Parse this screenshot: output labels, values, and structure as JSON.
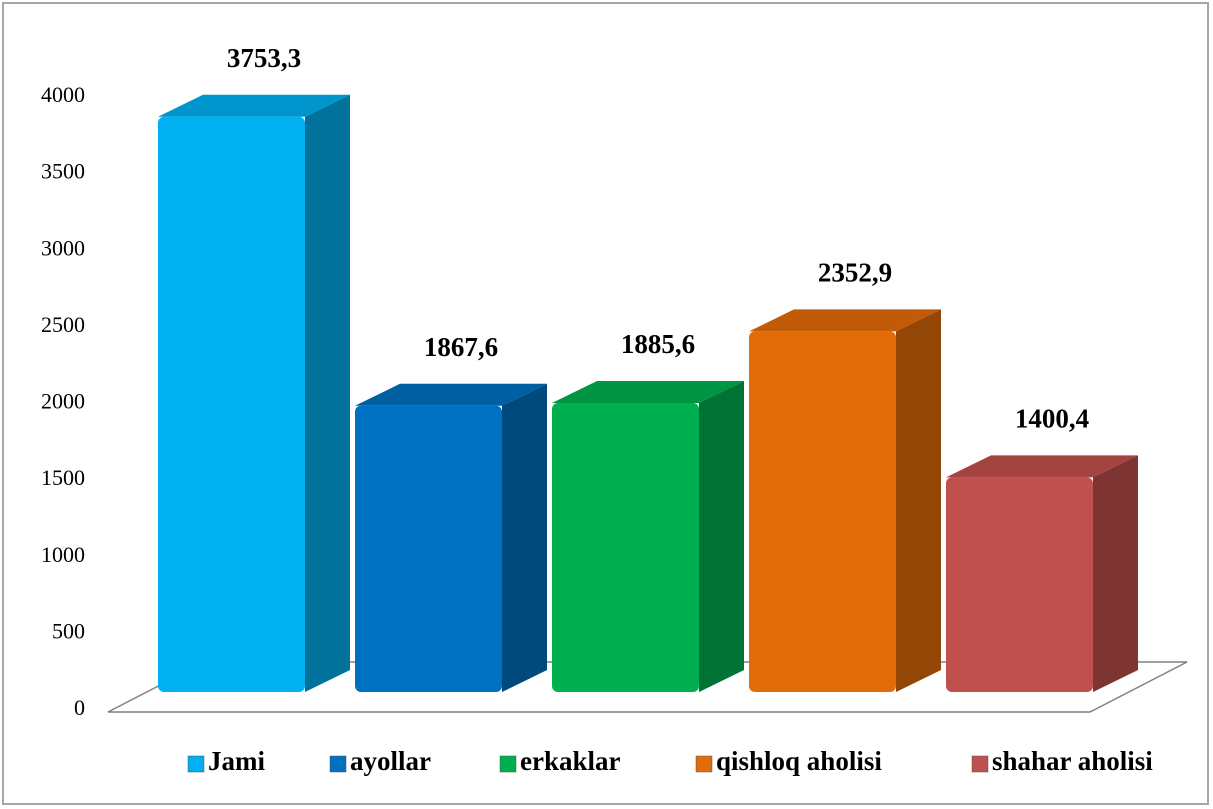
{
  "chart_data": {
    "type": "bar3d",
    "categories": [
      null
    ],
    "series": [
      {
        "name": "Jami",
        "color": "#00b0f0",
        "values": [
          3753.3
        ],
        "value_labels": [
          "3753,3"
        ]
      },
      {
        "name": "ayollar",
        "color": "#0070c0",
        "values": [
          1867.6
        ],
        "value_labels": [
          "1867,6"
        ]
      },
      {
        "name": "erkaklar",
        "color": "#00b050",
        "values": [
          1885.6
        ],
        "value_labels": [
          "1885,6"
        ]
      },
      {
        "name": "qishloq aholisi",
        "color": "#e36c0a",
        "values": [
          2352.9
        ],
        "value_labels": [
          "2352,9"
        ]
      },
      {
        "name": "shahar aholisi",
        "color": "#c0504d",
        "values": [
          1400.4
        ],
        "value_labels": [
          "1400,4"
        ]
      }
    ],
    "ylim": [
      0,
      4000
    ],
    "yticks": [
      0,
      500,
      1000,
      1500,
      2000,
      2500,
      3000,
      3500,
      4000
    ],
    "grid": false,
    "legend": "bottom"
  }
}
